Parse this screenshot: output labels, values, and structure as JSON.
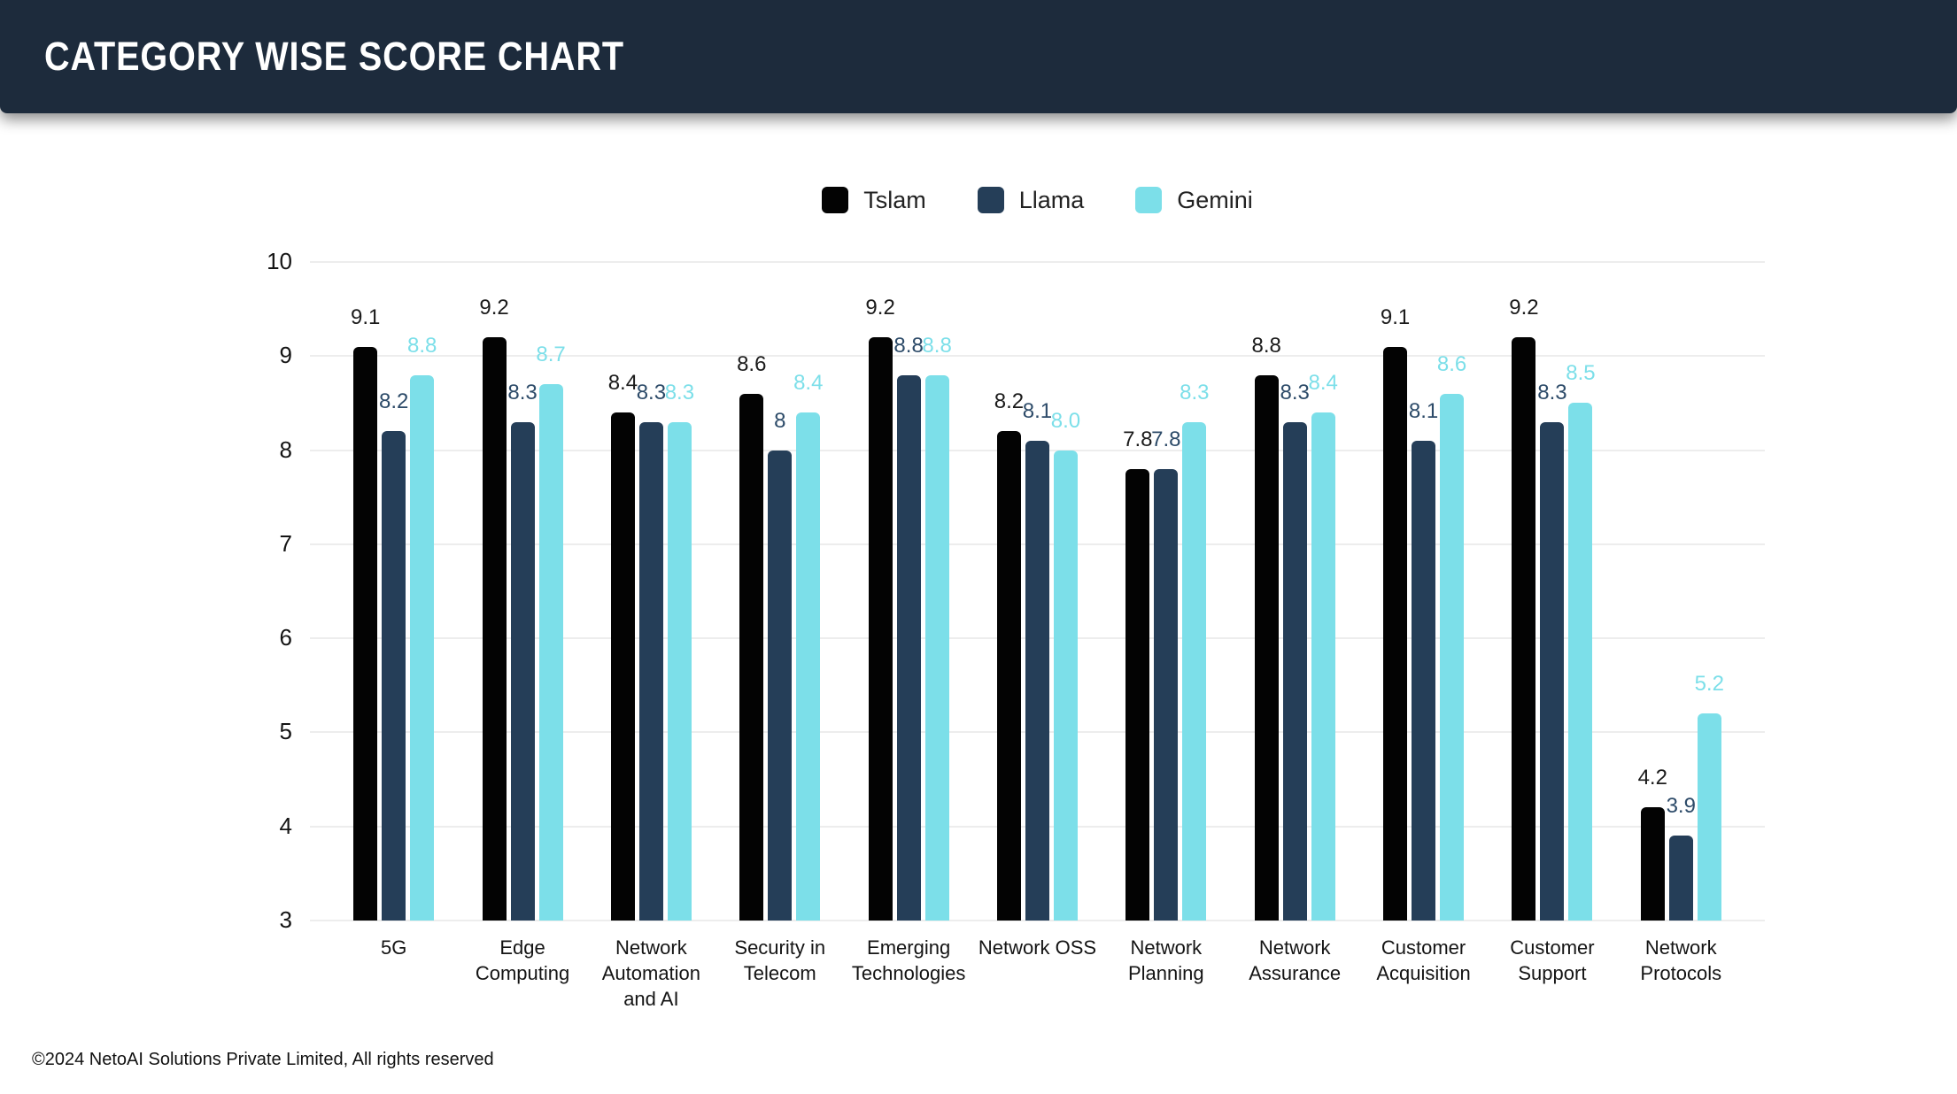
{
  "header": {
    "title": "CATEGORY WISE SCORE CHART"
  },
  "footer": {
    "copyright": "©2024 NetoAI Solutions Private Limited, All rights reserved"
  },
  "colors": {
    "header_bg": "#1d2b3c",
    "page_bg": "#ffffff",
    "gridline": "#ededed",
    "axis_text": "#141414"
  },
  "chart_data": {
    "type": "bar",
    "title": "CATEGORY WISE SCORE CHART",
    "xlabel": "",
    "ylabel": "",
    "ylim": [
      3,
      10
    ],
    "yticks": [
      10,
      9,
      8,
      7,
      6,
      5,
      4,
      3
    ],
    "grid": true,
    "legend_position": "top",
    "categories": [
      "5G",
      "Edge Computing",
      "Network Automation and AI",
      "Security in Telecom",
      "Emerging Technologies",
      "Network OSS",
      "Network Planning",
      "Network Assurance",
      "Customer Acquisition",
      "Customer Support",
      "Network Protocols"
    ],
    "series": [
      {
        "name": "Tslam",
        "color": "#030303",
        "label_color": "#1b1b1b",
        "values": [
          9.1,
          9.2,
          8.4,
          8.6,
          9.2,
          8.2,
          7.8,
          8.8,
          9.1,
          9.2,
          4.2
        ],
        "labels": [
          "9.1",
          "9.2",
          "8.4",
          "8.6",
          "9.2",
          "8.2",
          "7.8",
          "8.8",
          "9.1",
          "9.2",
          "4.2"
        ]
      },
      {
        "name": "Llama",
        "color": "#253e58",
        "label_color": "#2d4b69",
        "values": [
          8.2,
          8.3,
          8.3,
          8,
          8.8,
          8.1,
          7.8,
          8.3,
          8.1,
          8.3,
          3.9
        ],
        "labels": [
          "8.2",
          "8.3",
          "8.3",
          "8",
          "8.8",
          "8.1",
          "7.8",
          "8.3",
          "8.1",
          "8.3",
          "3.9"
        ]
      },
      {
        "name": "Gemini",
        "color": "#7cdfe9",
        "label_color": "#7cdfe9",
        "values": [
          8.8,
          8.7,
          8.3,
          8.4,
          8.8,
          8.0,
          8.3,
          8.4,
          8.6,
          8.5,
          5.2
        ],
        "labels": [
          "8.8",
          "8.7",
          "8.3",
          "8.4",
          "8.8",
          "8.0",
          "8.3",
          "8.4",
          "8.6",
          "8.5",
          "5.2"
        ]
      }
    ]
  }
}
